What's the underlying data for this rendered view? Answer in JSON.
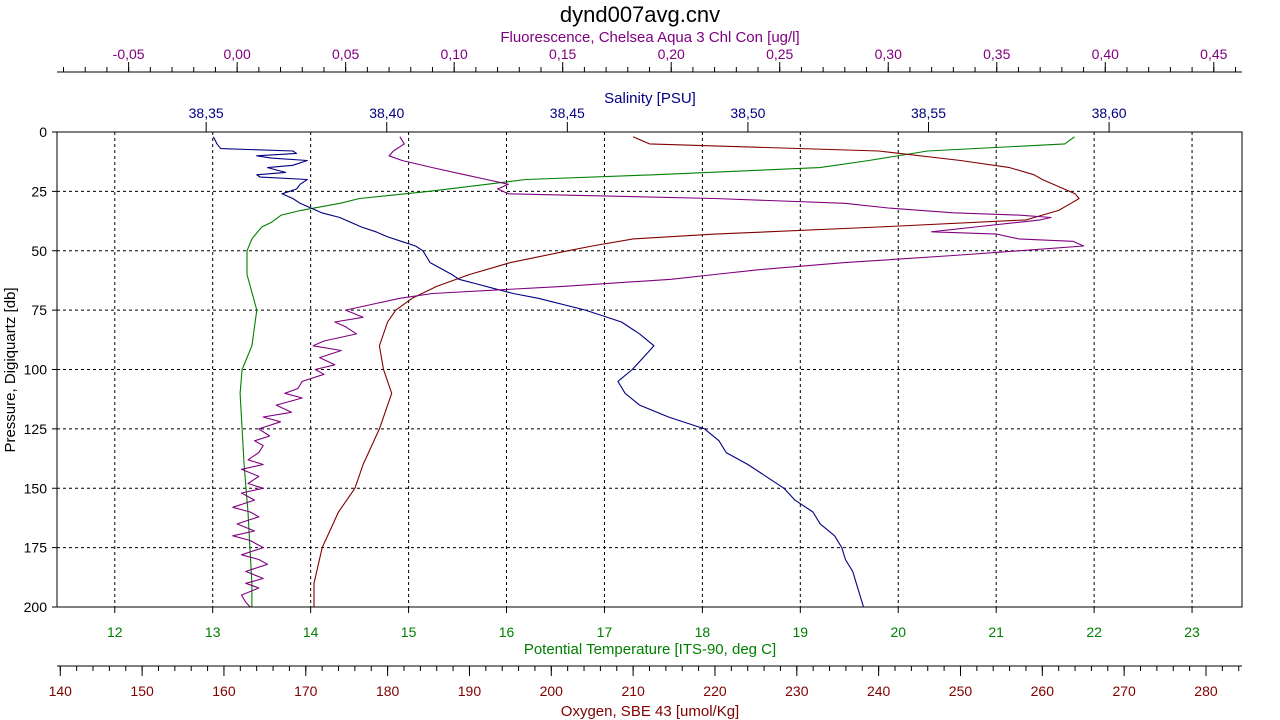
{
  "chart_data": {
    "type": "line",
    "title": "dynd007avg.cnv",
    "grid": true,
    "y_axis": {
      "label": "Pressure, Digiquartz [db]",
      "range": [
        0,
        200
      ],
      "inverted": true,
      "ticks": [
        "0",
        "25",
        "50",
        "75",
        "100",
        "125",
        "150",
        "175",
        "200"
      ]
    },
    "axes": {
      "fluorescence": {
        "label": "Fluorescence, Chelsea Aqua 3 Chl Con [ug/l]",
        "color": "#800080",
        "range": [
          -0.083,
          0.463
        ],
        "ticks": [
          -0.05,
          0.0,
          0.05,
          0.1,
          0.15,
          0.2,
          0.25,
          0.3,
          0.35,
          0.4,
          0.45
        ],
        "tick_labels": [
          "-0,05",
          "0,00",
          "0,05",
          "0,10",
          "0,15",
          "0,20",
          "0,25",
          "0,30",
          "0,35",
          "0,40",
          "0,45"
        ]
      },
      "salinity": {
        "label": "Salinity [PSU]",
        "color": "#000080",
        "range": [
          38.3087,
          38.6368
        ],
        "ticks": [
          38.35,
          38.4,
          38.45,
          38.5,
          38.55,
          38.6
        ],
        "tick_labels": [
          "38,35",
          "38,40",
          "38,45",
          "38,50",
          "38,55",
          "38,60"
        ]
      },
      "temperature": {
        "label": "Potential Temperature [ITS-90, deg C]",
        "color": "#008000",
        "range": [
          11.41,
          23.51
        ],
        "ticks": [
          12,
          13,
          14,
          15,
          16,
          17,
          18,
          19,
          20,
          21,
          22,
          23
        ],
        "tick_labels": [
          "12",
          "13",
          "14",
          "15",
          "16",
          "17",
          "18",
          "19",
          "20",
          "21",
          "22",
          "23"
        ]
      },
      "oxygen": {
        "label": "Oxygen, SBE 43 [umol/Kg]",
        "color": "#800000",
        "range": [
          139.6,
          284.4
        ],
        "ticks": [
          140,
          150,
          160,
          170,
          180,
          190,
          200,
          210,
          220,
          230,
          240,
          250,
          260,
          270,
          280
        ],
        "tick_labels": [
          "140",
          "150",
          "160",
          "170",
          "180",
          "190",
          "200",
          "210",
          "220",
          "230",
          "240",
          "250",
          "260",
          "270",
          "280"
        ]
      }
    },
    "series": [
      {
        "axis": "temperature",
        "pressure": [
          2,
          5,
          8,
          12,
          15,
          18,
          20,
          22,
          25,
          28,
          30,
          33,
          35,
          38,
          40,
          45,
          50,
          60,
          75,
          90,
          100,
          110,
          125,
          140,
          150,
          160,
          175,
          190,
          200
        ],
        "values": [
          21.8,
          21.7,
          20.3,
          19.7,
          19.2,
          17.5,
          16.2,
          15.8,
          15.2,
          14.5,
          14.3,
          13.9,
          13.7,
          13.6,
          13.5,
          13.4,
          13.35,
          13.35,
          13.45,
          13.4,
          13.3,
          13.28,
          13.3,
          13.32,
          13.34,
          13.36,
          13.38,
          13.4,
          13.4
        ]
      },
      {
        "axis": "oxygen",
        "pressure": [
          2,
          5,
          8,
          12,
          15,
          18,
          20,
          23,
          26,
          28,
          30,
          33,
          35,
          37,
          40,
          43,
          45,
          48,
          50,
          55,
          60,
          65,
          70,
          75,
          80,
          90,
          100,
          110,
          125,
          140,
          150,
          160,
          175,
          190,
          200
        ],
        "values": [
          210,
          212,
          240,
          250,
          256,
          259,
          260,
          262,
          264,
          264.5,
          263.5,
          262,
          260,
          258,
          240,
          220,
          210,
          205,
          202,
          195,
          190,
          186,
          183,
          181,
          180,
          179,
          179.5,
          180.5,
          179,
          177,
          176,
          174,
          172,
          171,
          171
        ]
      },
      {
        "axis": "salinity",
        "pressure": [
          2,
          5,
          7,
          8,
          9,
          10,
          11,
          12,
          14,
          15,
          17,
          18,
          19,
          20,
          22,
          24,
          26,
          28,
          30,
          32,
          34,
          36,
          38,
          40,
          42,
          44,
          46,
          48,
          50,
          55,
          60,
          62,
          64,
          66,
          68,
          70,
          75,
          80,
          85,
          90,
          95,
          100,
          105,
          110,
          115,
          120,
          125,
          130,
          135,
          140,
          145,
          150,
          155,
          160,
          165,
          170,
          175,
          180,
          185,
          190,
          195,
          200
        ],
        "values": [
          38.352,
          38.353,
          38.354,
          38.374,
          38.375,
          38.364,
          38.368,
          38.378,
          38.374,
          38.367,
          38.372,
          38.364,
          38.365,
          38.378,
          38.376,
          38.375,
          38.371,
          38.374,
          38.376,
          38.379,
          38.382,
          38.387,
          38.39,
          38.393,
          38.397,
          38.4,
          38.404,
          38.408,
          38.41,
          38.412,
          38.418,
          38.42,
          38.425,
          38.43,
          38.435,
          38.442,
          38.455,
          38.465,
          38.47,
          38.474,
          38.471,
          38.468,
          38.464,
          38.466,
          38.47,
          38.478,
          38.488,
          38.492,
          38.494,
          38.5,
          38.505,
          38.51,
          38.513,
          38.518,
          38.52,
          38.524,
          38.526,
          38.527,
          38.529,
          38.53,
          38.531,
          38.532
        ],
        "value_unit": "PSU"
      },
      {
        "axis": "fluorescence",
        "pressure": [
          2,
          5,
          8,
          10,
          12,
          15,
          18,
          20,
          22,
          24,
          26,
          28,
          30,
          32,
          34,
          35,
          36,
          37,
          38,
          40,
          42,
          43,
          45,
          46,
          48,
          50,
          52,
          55,
          58,
          60,
          62,
          65,
          68,
          70,
          72,
          75,
          78,
          80,
          82,
          85,
          88,
          90,
          92,
          95,
          98,
          100,
          102,
          105,
          108,
          110,
          112,
          115,
          118,
          120,
          122,
          125,
          128,
          130,
          132,
          135,
          138,
          140,
          142,
          145,
          148,
          150,
          152,
          155,
          158,
          160,
          162,
          165,
          168,
          170,
          172,
          175,
          178,
          180,
          182,
          185,
          188,
          190,
          192,
          195,
          198,
          200
        ],
        "values": [
          0.075,
          0.077,
          0.072,
          0.07,
          0.076,
          0.09,
          0.105,
          0.115,
          0.125,
          0.12,
          0.125,
          0.22,
          0.28,
          0.3,
          0.33,
          0.36,
          0.375,
          0.37,
          0.36,
          0.34,
          0.32,
          0.35,
          0.36,
          0.385,
          0.39,
          0.36,
          0.33,
          0.28,
          0.24,
          0.22,
          0.2,
          0.15,
          0.09,
          0.075,
          0.065,
          0.05,
          0.058,
          0.045,
          0.05,
          0.055,
          0.04,
          0.035,
          0.048,
          0.038,
          0.045,
          0.036,
          0.04,
          0.03,
          0.028,
          0.022,
          0.03,
          0.018,
          0.025,
          0.012,
          0.02,
          0.01,
          0.015,
          0.008,
          0.012,
          0.01,
          0.005,
          0.012,
          0.002,
          0.01,
          0.005,
          0.012,
          0.002,
          0.008,
          -0.002,
          0.006,
          0.01,
          0.0,
          0.008,
          -0.002,
          0.006,
          0.012,
          0.002,
          0.01,
          0.014,
          0.004,
          0.012,
          0.004,
          0.01,
          0.002,
          0.004,
          0.006
        ]
      }
    ]
  }
}
